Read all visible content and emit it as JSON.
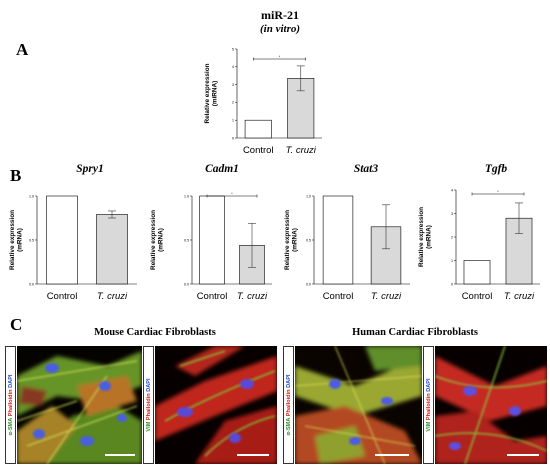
{
  "panel_a": {
    "letter": "A",
    "title": "miR-21",
    "subtitle": "(in vitro)"
  },
  "panel_b": {
    "letter": "B"
  },
  "panel_c": {
    "letter": "C",
    "mouse_title": "Mouse Cardiac Fibroblasts",
    "human_title": "Human Cardiac Fibroblasts",
    "stains": {
      "asma": "α-SMA",
      "vim": "VIM",
      "phalloidin": "Phalloidin",
      "dapi": "DAPI"
    }
  },
  "colors": {
    "control_bar": "#ffffff",
    "tcruzi_bar": "#d9d9d9",
    "asma_label": "#2e8b24",
    "phalloidin_label": "#d21a1a",
    "dapi_label": "#1f48c9"
  },
  "chart_data": [
    {
      "id": "a",
      "type": "bar",
      "gene": "",
      "categories": [
        "Control",
        "T. cruzi"
      ],
      "values": [
        1.0,
        3.35
      ],
      "error": [
        0,
        0.7
      ],
      "ylim": [
        0,
        5
      ],
      "yticks": [
        "0",
        "1",
        "2",
        "3",
        "4",
        "5"
      ],
      "ylabel": "Relative expression (miRNA)",
      "significance": "*"
    },
    {
      "id": "b1",
      "type": "bar",
      "gene": "Spry1",
      "categories": [
        "Control",
        "T. cruzi"
      ],
      "values": [
        1.0,
        0.79
      ],
      "error": [
        0,
        0.04
      ],
      "ylim": [
        0,
        1
      ],
      "yticks": [
        "0.0",
        "0.5",
        "1.0"
      ],
      "ylabel": "Relative expression (mRNA)",
      "significance": ""
    },
    {
      "id": "b2",
      "type": "bar",
      "gene": "Cadm1",
      "categories": [
        "Control",
        "T. cruzi"
      ],
      "values": [
        1.0,
        0.44
      ],
      "error": [
        0,
        0.25
      ],
      "ylim": [
        0,
        1
      ],
      "yticks": [
        "0.0",
        "0.5",
        "1.0"
      ],
      "ylabel": "Relative expression (mRNA)",
      "significance": "*"
    },
    {
      "id": "b3",
      "type": "bar",
      "gene": "Stat3",
      "categories": [
        "Control",
        "T. cruzi"
      ],
      "values": [
        1.0,
        0.65
      ],
      "error": [
        0,
        0.25
      ],
      "ylim": [
        0,
        1
      ],
      "yticks": [
        "0.0",
        "0.5",
        "1.0"
      ],
      "ylabel": "Relative expression (mRNA)",
      "significance": ""
    },
    {
      "id": "b4",
      "type": "bar",
      "gene": "Tgfb",
      "categories": [
        "Control",
        "T. cruzi"
      ],
      "values": [
        1.0,
        2.8
      ],
      "error": [
        0,
        0.65
      ],
      "ylim": [
        0,
        4
      ],
      "yticks": [
        "0",
        "1",
        "2",
        "3",
        "4"
      ],
      "ylabel": "Relative expression (mRNA)",
      "significance": "*"
    }
  ]
}
